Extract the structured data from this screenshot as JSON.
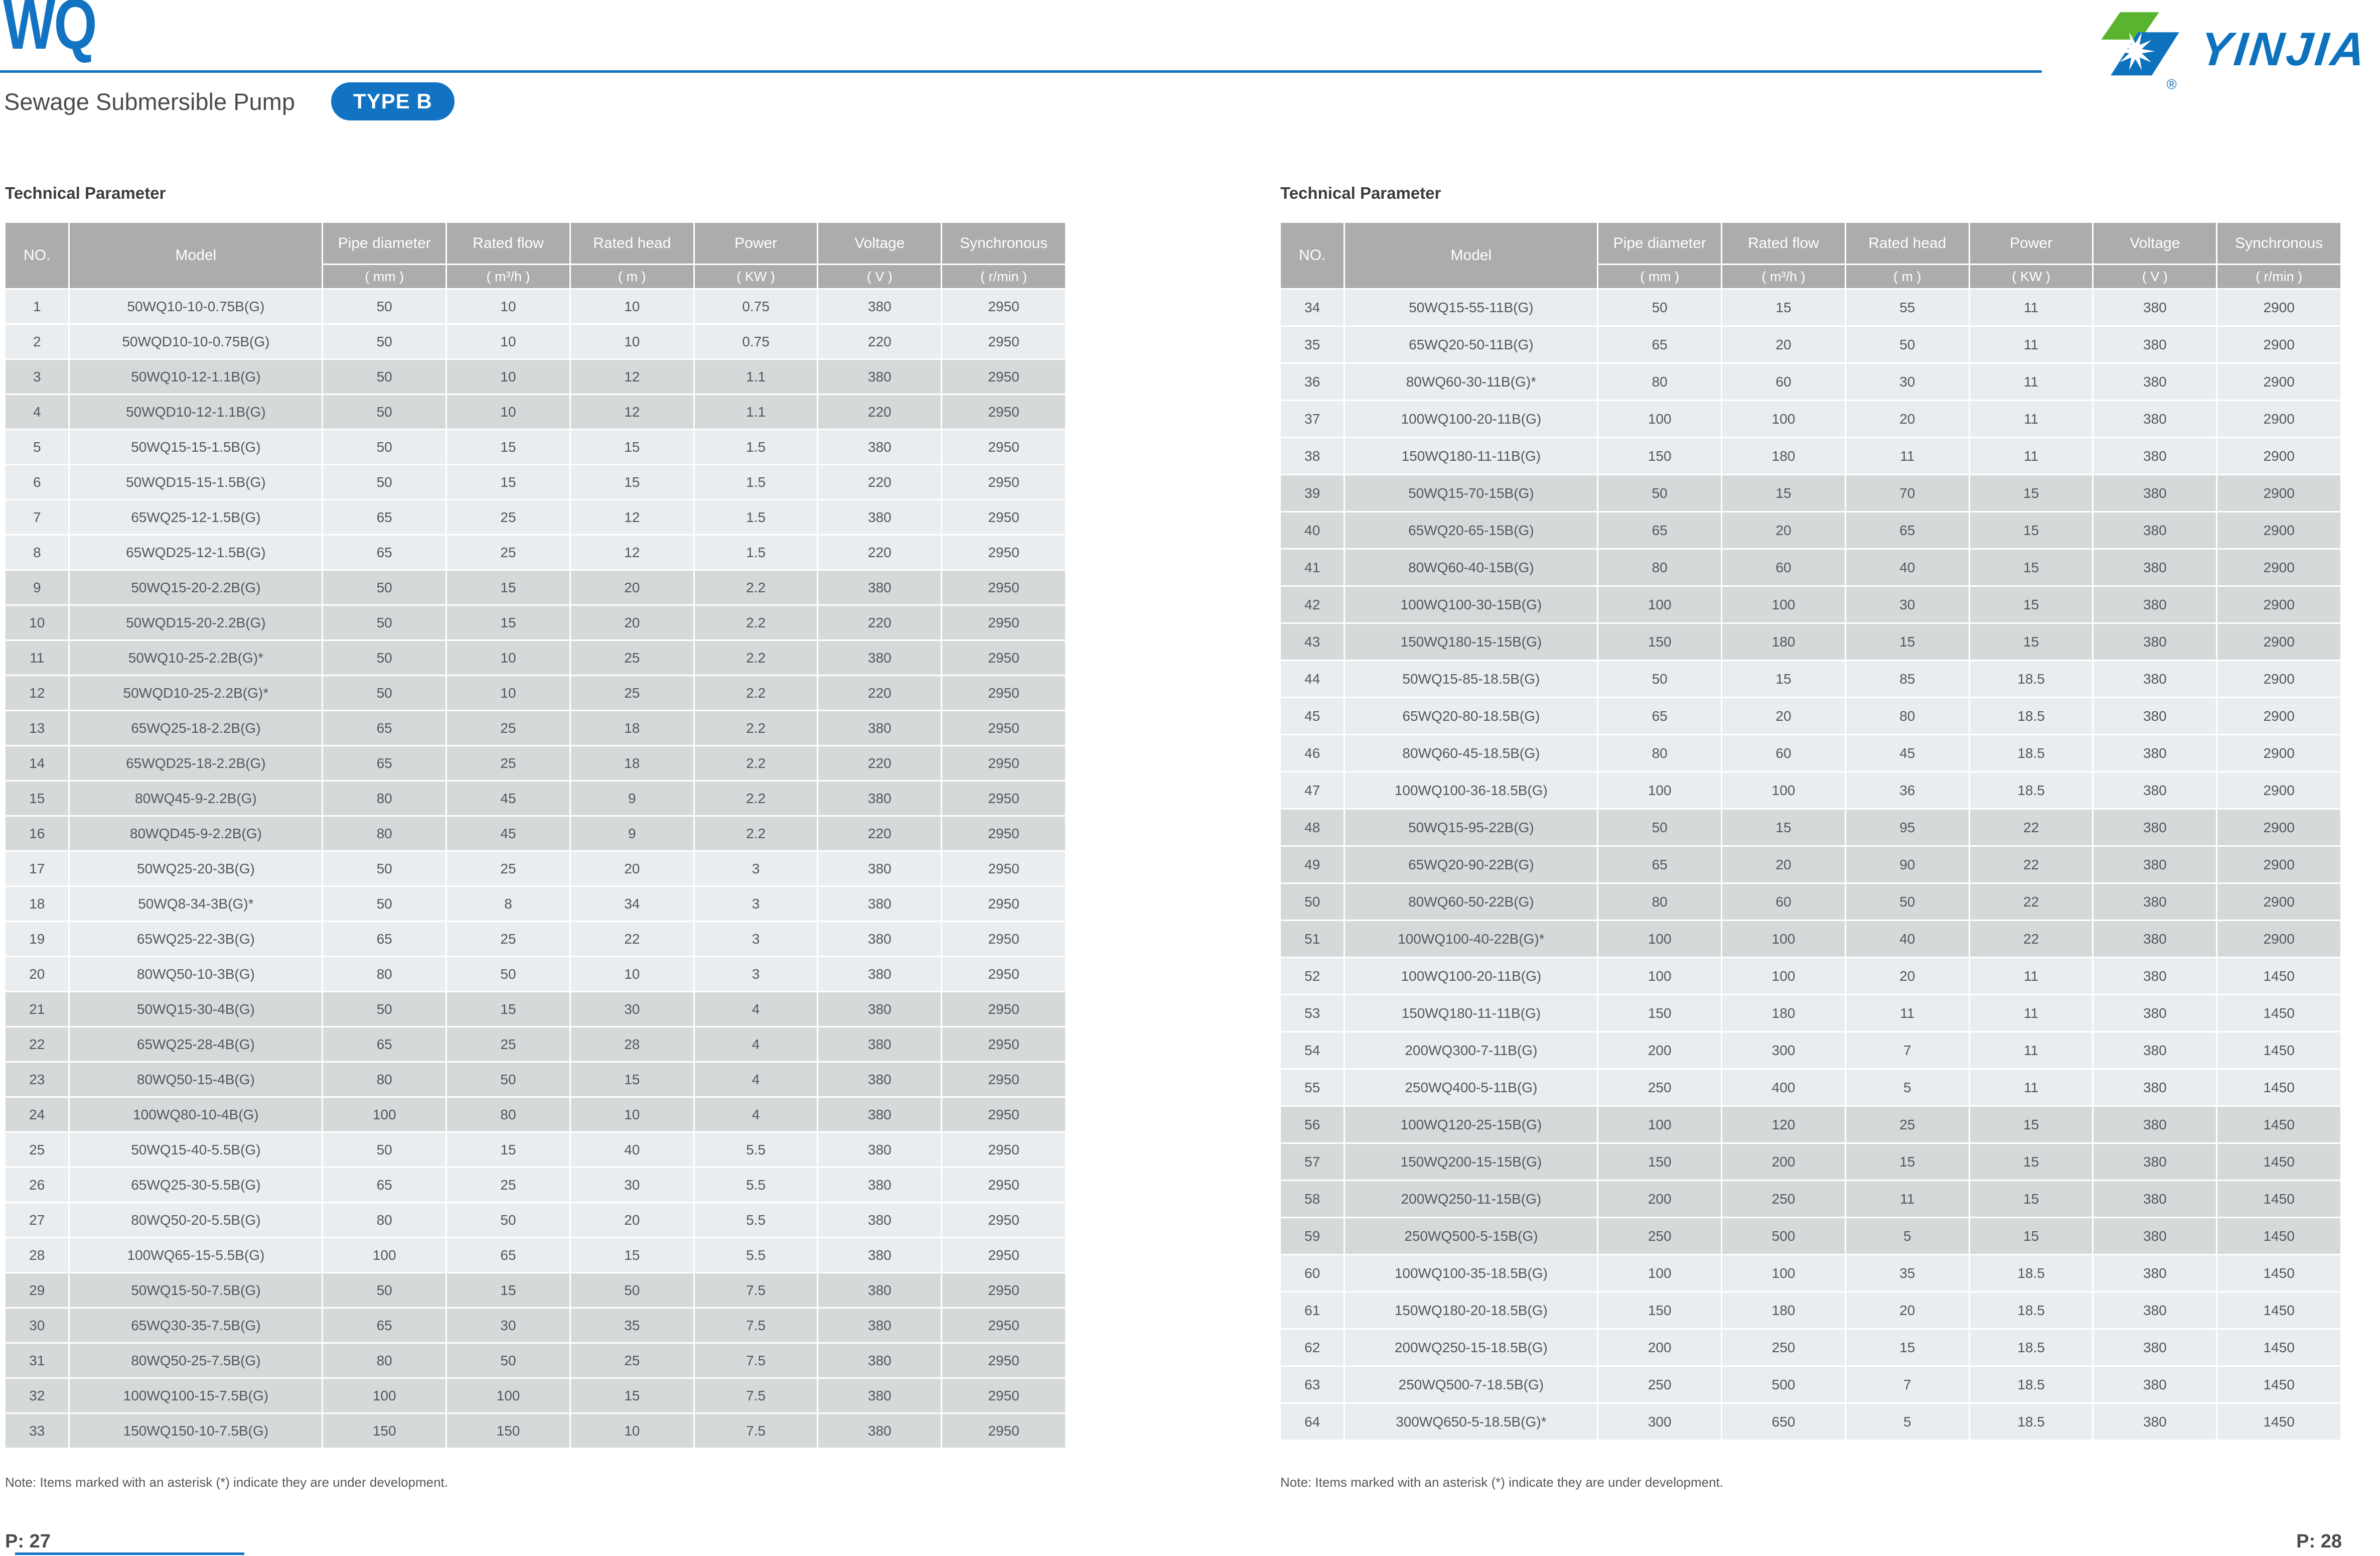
{
  "brand": {
    "series": "WQ",
    "subtitle": "Sewage Submersible Pump",
    "type_badge": "TYPE B",
    "logo_text": "YINJIA",
    "registered": "®"
  },
  "colors": {
    "accent_blue": "#1273c2",
    "logo_blue": "#0d72bd",
    "logo_green": "#5ab42f",
    "table_header_bg": "#abacad",
    "row_light": "#e9edf0",
    "row_dark": "#d5d9da"
  },
  "pages": [
    {
      "side": "left",
      "section_title": "Technical Parameter",
      "note": "Note: Items marked with an asterisk (*) indicate they are under development.",
      "page_label": "P: 27",
      "table": {
        "columns": [
          "NO.",
          "Model",
          "Pipe diameter",
          "Rated flow",
          "Rated head",
          "Power",
          "Voltage",
          "Synchronous"
        ],
        "units": [
          "( mm )",
          "( m³/h )",
          "( m )",
          "( KW )",
          "( V )",
          "( r/min )"
        ],
        "rows": [
          {
            "no": "1",
            "model": "50WQ10-10-0.75B(G)",
            "values": [
              "50",
              "10",
              "10",
              "0.75",
              "380",
              "2950"
            ],
            "shade": "light"
          },
          {
            "no": "2",
            "model": "50WQD10-10-0.75B(G)",
            "values": [
              "50",
              "10",
              "10",
              "0.75",
              "220",
              "2950"
            ],
            "shade": "light"
          },
          {
            "no": "3",
            "model": "50WQ10-12-1.1B(G)",
            "values": [
              "50",
              "10",
              "12",
              "1.1",
              "380",
              "2950"
            ],
            "shade": "dark"
          },
          {
            "no": "4",
            "model": "50WQD10-12-1.1B(G)",
            "values": [
              "50",
              "10",
              "12",
              "1.1",
              "220",
              "2950"
            ],
            "shade": "dark"
          },
          {
            "no": "5",
            "model": "50WQ15-15-1.5B(G)",
            "values": [
              "50",
              "15",
              "15",
              "1.5",
              "380",
              "2950"
            ],
            "shade": "light"
          },
          {
            "no": "6",
            "model": "50WQD15-15-1.5B(G)",
            "values": [
              "50",
              "15",
              "15",
              "1.5",
              "220",
              "2950"
            ],
            "shade": "light"
          },
          {
            "no": "7",
            "model": "65WQ25-12-1.5B(G)",
            "values": [
              "65",
              "25",
              "12",
              "1.5",
              "380",
              "2950"
            ],
            "shade": "light"
          },
          {
            "no": "8",
            "model": "65WQD25-12-1.5B(G)",
            "values": [
              "65",
              "25",
              "12",
              "1.5",
              "220",
              "2950"
            ],
            "shade": "light"
          },
          {
            "no": "9",
            "model": "50WQ15-20-2.2B(G)",
            "values": [
              "50",
              "15",
              "20",
              "2.2",
              "380",
              "2950"
            ],
            "shade": "dark"
          },
          {
            "no": "10",
            "model": "50WQD15-20-2.2B(G)",
            "values": [
              "50",
              "15",
              "20",
              "2.2",
              "220",
              "2950"
            ],
            "shade": "dark"
          },
          {
            "no": "11",
            "model": "50WQ10-25-2.2B(G)*",
            "values": [
              "50",
              "10",
              "25",
              "2.2",
              "380",
              "2950"
            ],
            "shade": "dark"
          },
          {
            "no": "12",
            "model": "50WQD10-25-2.2B(G)*",
            "values": [
              "50",
              "10",
              "25",
              "2.2",
              "220",
              "2950"
            ],
            "shade": "dark"
          },
          {
            "no": "13",
            "model": "65WQ25-18-2.2B(G)",
            "values": [
              "65",
              "25",
              "18",
              "2.2",
              "380",
              "2950"
            ],
            "shade": "dark"
          },
          {
            "no": "14",
            "model": "65WQD25-18-2.2B(G)",
            "values": [
              "65",
              "25",
              "18",
              "2.2",
              "220",
              "2950"
            ],
            "shade": "dark"
          },
          {
            "no": "15",
            "model": "80WQ45-9-2.2B(G)",
            "values": [
              "80",
              "45",
              "9",
              "2.2",
              "380",
              "2950"
            ],
            "shade": "dark"
          },
          {
            "no": "16",
            "model": "80WQD45-9-2.2B(G)",
            "values": [
              "80",
              "45",
              "9",
              "2.2",
              "220",
              "2950"
            ],
            "shade": "dark"
          },
          {
            "no": "17",
            "model": "50WQ25-20-3B(G)",
            "values": [
              "50",
              "25",
              "20",
              "3",
              "380",
              "2950"
            ],
            "shade": "light"
          },
          {
            "no": "18",
            "model": "50WQ8-34-3B(G)*",
            "values": [
              "50",
              "8",
              "34",
              "3",
              "380",
              "2950"
            ],
            "shade": "light"
          },
          {
            "no": "19",
            "model": "65WQ25-22-3B(G)",
            "values": [
              "65",
              "25",
              "22",
              "3",
              "380",
              "2950"
            ],
            "shade": "light"
          },
          {
            "no": "20",
            "model": "80WQ50-10-3B(G)",
            "values": [
              "80",
              "50",
              "10",
              "3",
              "380",
              "2950"
            ],
            "shade": "light"
          },
          {
            "no": "21",
            "model": "50WQ15-30-4B(G)",
            "values": [
              "50",
              "15",
              "30",
              "4",
              "380",
              "2950"
            ],
            "shade": "dark"
          },
          {
            "no": "22",
            "model": "65WQ25-28-4B(G)",
            "values": [
              "65",
              "25",
              "28",
              "4",
              "380",
              "2950"
            ],
            "shade": "dark"
          },
          {
            "no": "23",
            "model": "80WQ50-15-4B(G)",
            "values": [
              "80",
              "50",
              "15",
              "4",
              "380",
              "2950"
            ],
            "shade": "dark"
          },
          {
            "no": "24",
            "model": "100WQ80-10-4B(G)",
            "values": [
              "100",
              "80",
              "10",
              "4",
              "380",
              "2950"
            ],
            "shade": "dark"
          },
          {
            "no": "25",
            "model": "50WQ15-40-5.5B(G)",
            "values": [
              "50",
              "15",
              "40",
              "5.5",
              "380",
              "2950"
            ],
            "shade": "light"
          },
          {
            "no": "26",
            "model": "65WQ25-30-5.5B(G)",
            "values": [
              "65",
              "25",
              "30",
              "5.5",
              "380",
              "2950"
            ],
            "shade": "light"
          },
          {
            "no": "27",
            "model": "80WQ50-20-5.5B(G)",
            "values": [
              "80",
              "50",
              "20",
              "5.5",
              "380",
              "2950"
            ],
            "shade": "light"
          },
          {
            "no": "28",
            "model": "100WQ65-15-5.5B(G)",
            "values": [
              "100",
              "65",
              "15",
              "5.5",
              "380",
              "2950"
            ],
            "shade": "light"
          },
          {
            "no": "29",
            "model": "50WQ15-50-7.5B(G)",
            "values": [
              "50",
              "15",
              "50",
              "7.5",
              "380",
              "2950"
            ],
            "shade": "dark"
          },
          {
            "no": "30",
            "model": "65WQ30-35-7.5B(G)",
            "values": [
              "65",
              "30",
              "35",
              "7.5",
              "380",
              "2950"
            ],
            "shade": "dark"
          },
          {
            "no": "31",
            "model": "80WQ50-25-7.5B(G)",
            "values": [
              "80",
              "50",
              "25",
              "7.5",
              "380",
              "2950"
            ],
            "shade": "dark"
          },
          {
            "no": "32",
            "model": "100WQ100-15-7.5B(G)",
            "values": [
              "100",
              "100",
              "15",
              "7.5",
              "380",
              "2950"
            ],
            "shade": "dark"
          },
          {
            "no": "33",
            "model": "150WQ150-10-7.5B(G)",
            "values": [
              "150",
              "150",
              "10",
              "7.5",
              "380",
              "2950"
            ],
            "shade": "dark"
          }
        ]
      }
    },
    {
      "side": "right",
      "section_title": "Technical Parameter",
      "note": "Note: Items marked with an asterisk (*) indicate they are under development.",
      "page_label": "P: 28",
      "table": {
        "columns": [
          "NO.",
          "Model",
          "Pipe diameter",
          "Rated flow",
          "Rated head",
          "Power",
          "Voltage",
          "Synchronous"
        ],
        "units": [
          "( mm )",
          "( m³/h )",
          "( m )",
          "( KW )",
          "( V )",
          "( r/min )"
        ],
        "rows": [
          {
            "no": "34",
            "model": "50WQ15-55-11B(G)",
            "values": [
              "50",
              "15",
              "55",
              "11",
              "380",
              "2900"
            ],
            "shade": "light"
          },
          {
            "no": "35",
            "model": "65WQ20-50-11B(G)",
            "values": [
              "65",
              "20",
              "50",
              "11",
              "380",
              "2900"
            ],
            "shade": "light"
          },
          {
            "no": "36",
            "model": "80WQ60-30-11B(G)*",
            "values": [
              "80",
              "60",
              "30",
              "11",
              "380",
              "2900"
            ],
            "shade": "light"
          },
          {
            "no": "37",
            "model": "100WQ100-20-11B(G)",
            "values": [
              "100",
              "100",
              "20",
              "11",
              "380",
              "2900"
            ],
            "shade": "light"
          },
          {
            "no": "38",
            "model": "150WQ180-11-11B(G)",
            "values": [
              "150",
              "180",
              "11",
              "11",
              "380",
              "2900"
            ],
            "shade": "light"
          },
          {
            "no": "39",
            "model": "50WQ15-70-15B(G)",
            "values": [
              "50",
              "15",
              "70",
              "15",
              "380",
              "2900"
            ],
            "shade": "dark"
          },
          {
            "no": "40",
            "model": "65WQ20-65-15B(G)",
            "values": [
              "65",
              "20",
              "65",
              "15",
              "380",
              "2900"
            ],
            "shade": "dark"
          },
          {
            "no": "41",
            "model": "80WQ60-40-15B(G)",
            "values": [
              "80",
              "60",
              "40",
              "15",
              "380",
              "2900"
            ],
            "shade": "dark"
          },
          {
            "no": "42",
            "model": "100WQ100-30-15B(G)",
            "values": [
              "100",
              "100",
              "30",
              "15",
              "380",
              "2900"
            ],
            "shade": "dark"
          },
          {
            "no": "43",
            "model": "150WQ180-15-15B(G)",
            "values": [
              "150",
              "180",
              "15",
              "15",
              "380",
              "2900"
            ],
            "shade": "dark"
          },
          {
            "no": "44",
            "model": "50WQ15-85-18.5B(G)",
            "values": [
              "50",
              "15",
              "85",
              "18.5",
              "380",
              "2900"
            ],
            "shade": "light"
          },
          {
            "no": "45",
            "model": "65WQ20-80-18.5B(G)",
            "values": [
              "65",
              "20",
              "80",
              "18.5",
              "380",
              "2900"
            ],
            "shade": "light"
          },
          {
            "no": "46",
            "model": "80WQ60-45-18.5B(G)",
            "values": [
              "80",
              "60",
              "45",
              "18.5",
              "380",
              "2900"
            ],
            "shade": "light"
          },
          {
            "no": "47",
            "model": "100WQ100-36-18.5B(G)",
            "values": [
              "100",
              "100",
              "36",
              "18.5",
              "380",
              "2900"
            ],
            "shade": "light"
          },
          {
            "no": "48",
            "model": "50WQ15-95-22B(G)",
            "values": [
              "50",
              "15",
              "95",
              "22",
              "380",
              "2900"
            ],
            "shade": "dark"
          },
          {
            "no": "49",
            "model": "65WQ20-90-22B(G)",
            "values": [
              "65",
              "20",
              "90",
              "22",
              "380",
              "2900"
            ],
            "shade": "dark"
          },
          {
            "no": "50",
            "model": "80WQ60-50-22B(G)",
            "values": [
              "80",
              "60",
              "50",
              "22",
              "380",
              "2900"
            ],
            "shade": "dark"
          },
          {
            "no": "51",
            "model": "100WQ100-40-22B(G)*",
            "values": [
              "100",
              "100",
              "40",
              "22",
              "380",
              "2900"
            ],
            "shade": "dark"
          },
          {
            "no": "52",
            "model": "100WQ100-20-11B(G)",
            "values": [
              "100",
              "100",
              "20",
              "11",
              "380",
              "1450"
            ],
            "shade": "light"
          },
          {
            "no": "53",
            "model": "150WQ180-11-11B(G)",
            "values": [
              "150",
              "180",
              "11",
              "11",
              "380",
              "1450"
            ],
            "shade": "light"
          },
          {
            "no": "54",
            "model": "200WQ300-7-11B(G)",
            "values": [
              "200",
              "300",
              "7",
              "11",
              "380",
              "1450"
            ],
            "shade": "light"
          },
          {
            "no": "55",
            "model": "250WQ400-5-11B(G)",
            "values": [
              "250",
              "400",
              "5",
              "11",
              "380",
              "1450"
            ],
            "shade": "light"
          },
          {
            "no": "56",
            "model": "100WQ120-25-15B(G)",
            "values": [
              "100",
              "120",
              "25",
              "15",
              "380",
              "1450"
            ],
            "shade": "dark"
          },
          {
            "no": "57",
            "model": "150WQ200-15-15B(G)",
            "values": [
              "150",
              "200",
              "15",
              "15",
              "380",
              "1450"
            ],
            "shade": "dark"
          },
          {
            "no": "58",
            "model": "200WQ250-11-15B(G)",
            "values": [
              "200",
              "250",
              "11",
              "15",
              "380",
              "1450"
            ],
            "shade": "dark"
          },
          {
            "no": "59",
            "model": "250WQ500-5-15B(G)",
            "values": [
              "250",
              "500",
              "5",
              "15",
              "380",
              "1450"
            ],
            "shade": "dark"
          },
          {
            "no": "60",
            "model": "100WQ100-35-18.5B(G)",
            "values": [
              "100",
              "100",
              "35",
              "18.5",
              "380",
              "1450"
            ],
            "shade": "light"
          },
          {
            "no": "61",
            "model": "150WQ180-20-18.5B(G)",
            "values": [
              "150",
              "180",
              "20",
              "18.5",
              "380",
              "1450"
            ],
            "shade": "light"
          },
          {
            "no": "62",
            "model": "200WQ250-15-18.5B(G)",
            "values": [
              "200",
              "250",
              "15",
              "18.5",
              "380",
              "1450"
            ],
            "shade": "light"
          },
          {
            "no": "63",
            "model": "250WQ500-7-18.5B(G)",
            "values": [
              "250",
              "500",
              "7",
              "18.5",
              "380",
              "1450"
            ],
            "shade": "light"
          },
          {
            "no": "64",
            "model": "300WQ650-5-18.5B(G)*",
            "values": [
              "300",
              "650",
              "5",
              "18.5",
              "380",
              "1450"
            ],
            "shade": "light"
          }
        ]
      }
    }
  ]
}
